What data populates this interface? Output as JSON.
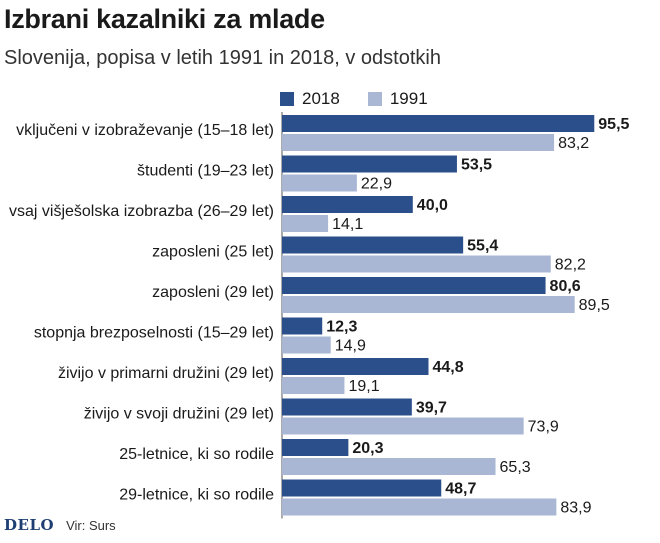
{
  "title": "Izbrani kazalniki za mlade",
  "subtitle": "Slovenija, popisa v letih 1991 in 2018, v odstotkih",
  "colors": {
    "series_2018": "#2a4f8b",
    "series_1991": "#aab7d4"
  },
  "footer": {
    "logo": "DELO",
    "source": "Vir: Surs"
  },
  "chart_data": {
    "type": "bar",
    "orientation": "horizontal",
    "categories": [
      "vključeni v izobraževanje (15–18 let)",
      "študenti (19–23 let)",
      "vsaj višješolska izobrazba (26–29 let)",
      "zaposleni (25 let)",
      "zaposleni (29 let)",
      "stopnja brezposelnosti (15–29 let)",
      "živijo v primarni družini (29 let)",
      "živijo v svoji družini (29 let)",
      "25-letnice, ki so rodile",
      "29-letnice, ki so rodile"
    ],
    "series": [
      {
        "name": "2018",
        "values": [
          95.5,
          53.5,
          40.0,
          55.4,
          80.6,
          12.3,
          44.8,
          39.7,
          20.3,
          48.7
        ],
        "labels": [
          "95,5",
          "53,5",
          "40,0",
          "55,4",
          "80,6",
          "12,3",
          "44,8",
          "39,7",
          "20,3",
          "48,7"
        ]
      },
      {
        "name": "1991",
        "values": [
          83.2,
          22.9,
          14.1,
          82.2,
          89.5,
          14.9,
          19.1,
          73.9,
          65.3,
          83.9
        ],
        "labels": [
          "83,2",
          "22,9",
          "14,1",
          "82,2",
          "89,5",
          "14,9",
          "19,1",
          "73,9",
          "65,3",
          "83,9"
        ]
      }
    ],
    "xlim": [
      0,
      100
    ],
    "grid": false,
    "legend_position": "top"
  }
}
